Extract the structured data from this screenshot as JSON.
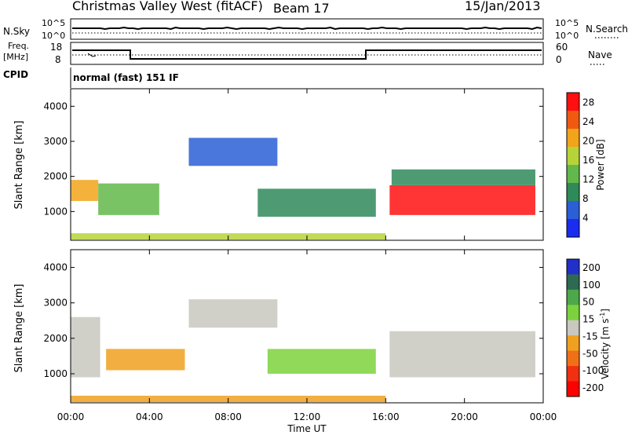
{
  "header": {
    "station": "Christmas Valley West (fitACF)",
    "beam": "Beam 17",
    "date": "15/Jan/2013"
  },
  "sky_panel": {
    "left_label": "N.Sky",
    "right_label": "N.Search",
    "ticks": [
      "10^5",
      "10^0"
    ]
  },
  "freq_panel": {
    "left_label_1": "Freq.",
    "left_label_2": "[MHz]",
    "left_ticks": [
      "18",
      "8"
    ],
    "right_ticks": [
      "60",
      "0"
    ],
    "right_label": "Nave"
  },
  "cpid": {
    "label": "CPID",
    "mode": "normal (fast) 151 IF"
  },
  "colors": {
    "white": "#ffffff",
    "grey": "#c8c8c0",
    "power_scale": [
      "#1a2cf0",
      "#2a5fd6",
      "#2f8a5a",
      "#62b84a",
      "#b6d43a",
      "#f2a41a",
      "#f05a10",
      "#ff1010"
    ],
    "velocity_scale": [
      "#2030c8",
      "#2e6a52",
      "#4ca84a",
      "#7cd23c",
      "#c8c8c0",
      "#f0a020",
      "#f07018",
      "#f03010",
      "#ff0000"
    ]
  },
  "chart_data": [
    {
      "type": "heatmap",
      "title": "Power",
      "ylabel": "Slant Range [km]",
      "xlabel": "Time UT",
      "x_ticks": [
        "00:00",
        "04:00",
        "08:00",
        "12:00",
        "16:00",
        "20:00",
        "00:00"
      ],
      "y_ticks": [
        1000,
        2000,
        3000,
        4000
      ],
      "xlim": [
        0,
        24
      ],
      "ylim": [
        180,
        4500
      ],
      "colorbar": {
        "label": "Power [dB]",
        "ticks": [
          4,
          8,
          12,
          16,
          20,
          24,
          28
        ],
        "range": [
          0,
          30
        ]
      },
      "regions": [
        {
          "t0": 0.0,
          "t1": 1.4,
          "r0": 1300,
          "r1": 1900,
          "value": 22
        },
        {
          "t0": 1.4,
          "t1": 4.5,
          "r0": 900,
          "r1": 1800,
          "value": 12
        },
        {
          "t0": 6.0,
          "t1": 10.5,
          "r0": 2300,
          "r1": 3100,
          "value": 6
        },
        {
          "t0": 9.5,
          "t1": 15.5,
          "r0": 850,
          "r1": 1650,
          "value": 9
        },
        {
          "t0": 16.2,
          "t1": 23.6,
          "r0": 900,
          "r1": 1750,
          "value": 27
        },
        {
          "t0": 16.3,
          "t1": 23.6,
          "r0": 1750,
          "r1": 2200,
          "value": 11
        },
        {
          "t0": 0.0,
          "t1": 16.0,
          "r0": 200,
          "r1": 380,
          "value": 15
        }
      ]
    },
    {
      "type": "heatmap",
      "title": "Velocity",
      "ylabel": "Slant Range [km]",
      "xlabel": "Time UT",
      "x_ticks": [
        "00:00",
        "04:00",
        "08:00",
        "12:00",
        "16:00",
        "20:00",
        "00:00"
      ],
      "y_ticks": [
        1000,
        2000,
        3000,
        4000
      ],
      "xlim": [
        0,
        24
      ],
      "ylim": [
        180,
        4500
      ],
      "colorbar": {
        "label": "Velocity [m s^-1]",
        "ticks": [
          200,
          100,
          50,
          15,
          -15,
          -50,
          -100,
          -200
        ],
        "range": [
          -250,
          250
        ]
      },
      "regions": [
        {
          "t0": 0.0,
          "t1": 1.5,
          "r0": 900,
          "r1": 2600,
          "value": 0
        },
        {
          "t0": 1.8,
          "t1": 5.8,
          "r0": 1100,
          "r1": 1700,
          "value": -60
        },
        {
          "t0": 6.0,
          "t1": 10.5,
          "r0": 2300,
          "r1": 3100,
          "value": 0
        },
        {
          "t0": 10.0,
          "t1": 15.5,
          "r0": 1000,
          "r1": 1700,
          "value": 40
        },
        {
          "t0": 16.2,
          "t1": 23.6,
          "r0": 900,
          "r1": 2200,
          "value": 0
        },
        {
          "t0": 0.0,
          "t1": 16.0,
          "r0": 200,
          "r1": 380,
          "value": -60
        }
      ]
    }
  ],
  "axis": {
    "ylabel": "Slant Range [km]",
    "xlabel": "Time UT",
    "power_cbar_label": "Power [dB]",
    "velocity_cbar_label": "Velocity [m s",
    "velocity_cbar_sup": "-1",
    "velocity_cbar_end": "]"
  }
}
